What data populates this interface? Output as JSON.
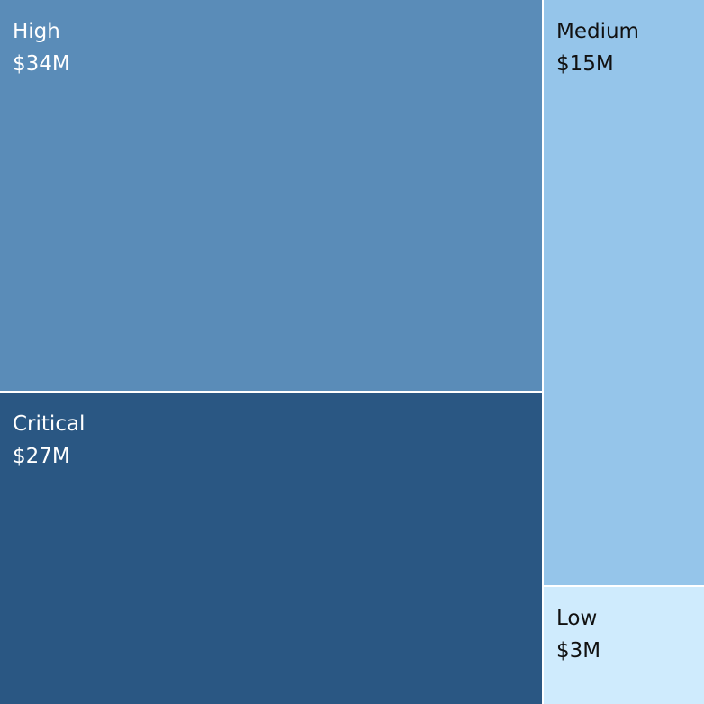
{
  "chart_data": {
    "type": "treemap",
    "title": "",
    "categories": [
      "High",
      "Critical",
      "Medium",
      "Low"
    ],
    "values": [
      34,
      27,
      15,
      3
    ],
    "value_labels": [
      "$34M",
      "$27M",
      "$15M",
      "$3M"
    ],
    "unit": "$M",
    "colors": {
      "High": "#5a8cb8",
      "Critical": "#2a5783",
      "Medium": "#95c5ea",
      "Low": "#cfebfd"
    },
    "text_colors": {
      "High": "#ffffff",
      "Critical": "#ffffff",
      "Medium": "#111111",
      "Low": "#111111"
    }
  }
}
